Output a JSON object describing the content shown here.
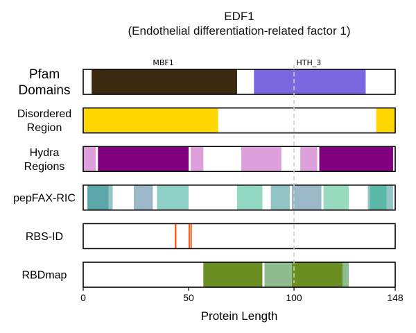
{
  "chart_data": {
    "type": "track",
    "title": "EDF1",
    "subtitle": "(Endothelial differentiation-related factor 1)",
    "xlabel": "Protein Length",
    "xlim": [
      0,
      148
    ],
    "xticks": [
      0,
      50,
      100,
      148
    ],
    "reference_line": 100,
    "tracks": [
      {
        "name": "Pfam\nDomains",
        "segments": [
          {
            "start": 4,
            "end": 73,
            "color": "#3b2a10"
          },
          {
            "start": 81,
            "end": 134,
            "color": "#7b68e0"
          }
        ],
        "annotations": [
          {
            "label": "MBF1",
            "x": 38
          },
          {
            "label": "HTH_3",
            "x": 107
          }
        ]
      },
      {
        "name": "Disordered\nRegion",
        "segments": [
          {
            "start": 0,
            "end": 64,
            "color": "#ffd700"
          },
          {
            "start": 139,
            "end": 148,
            "color": "#ffd700"
          }
        ]
      },
      {
        "name": "Hydra\nRegions",
        "segments": [
          {
            "start": 0,
            "end": 6,
            "color": "#dda0dd"
          },
          {
            "start": 7,
            "end": 50,
            "color": "#800080"
          },
          {
            "start": 51,
            "end": 57,
            "color": "#dda0dd"
          },
          {
            "start": 75,
            "end": 94,
            "color": "#dda0dd"
          },
          {
            "start": 103,
            "end": 111,
            "color": "#dda0dd"
          },
          {
            "start": 112,
            "end": 147,
            "color": "#800080"
          }
        ]
      },
      {
        "name": "pepFAX-RIC",
        "segments": [
          {
            "start": 2,
            "end": 12,
            "color": "#5ba6a9"
          },
          {
            "start": 12,
            "end": 14,
            "color": "#96c5c7"
          },
          {
            "start": 24,
            "end": 33,
            "color": "#9ab8c7"
          },
          {
            "start": 35,
            "end": 50,
            "color": "#8ed0c6"
          },
          {
            "start": 73,
            "end": 85,
            "color": "#92d8c2"
          },
          {
            "start": 89,
            "end": 98,
            "color": "#92c4c6"
          },
          {
            "start": 99,
            "end": 113,
            "color": "#9ab8c7"
          },
          {
            "start": 114,
            "end": 126,
            "color": "#99dbbf"
          },
          {
            "start": 135,
            "end": 136,
            "color": "#96c5c7"
          },
          {
            "start": 136,
            "end": 144,
            "color": "#5bb8a6"
          },
          {
            "start": 144,
            "end": 147,
            "color": "#96c5c7"
          }
        ]
      },
      {
        "name": "RBS-ID",
        "segments": [
          {
            "start": 43.5,
            "end": 44.2,
            "color": "#ff4500"
          },
          {
            "start": 50.0,
            "end": 50.6,
            "color": "#ff4500"
          },
          {
            "start": 50.9,
            "end": 51.5,
            "color": "#ff4500"
          }
        ]
      },
      {
        "name": "RBDmap",
        "segments": [
          {
            "start": 57,
            "end": 85,
            "color": "#6b8e23"
          },
          {
            "start": 86,
            "end": 99,
            "color": "#8fbc8f"
          },
          {
            "start": 99,
            "end": 123,
            "color": "#6b8e23"
          },
          {
            "start": 123,
            "end": 126,
            "color": "#8fbc8f"
          }
        ]
      }
    ]
  }
}
